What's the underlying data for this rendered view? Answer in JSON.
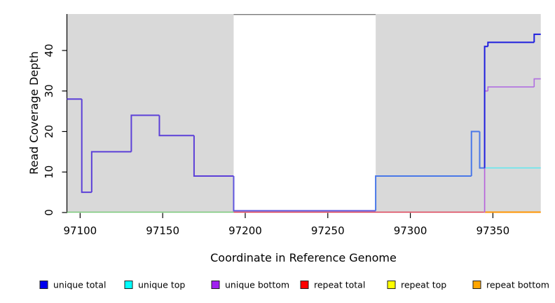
{
  "figure": {
    "background": "#ffffff"
  },
  "chart_data": {
    "type": "line",
    "subtype": "step-coverage-plot",
    "title": "",
    "xlabel": "Coordinate in Reference Genome",
    "ylabel": "Read Coverage Depth",
    "x_ticks": [
      97100,
      97150,
      97200,
      97250,
      97300,
      97350
    ],
    "y_ticks": [
      0,
      10,
      20,
      30,
      40
    ],
    "xlim": [
      97092,
      97379
    ],
    "ylim": [
      0,
      49
    ],
    "grid": false,
    "axis_color": "#000000",
    "shaded_regions": [
      {
        "name": "left-repeat-shading",
        "from": 97092,
        "to": 97193,
        "color": "#d9d9d9"
      },
      {
        "name": "right-repeat-shading",
        "from": 97279,
        "to": 97379,
        "color": "#d9d9d9"
      }
    ],
    "gap_region": {
      "from": 97193,
      "to": 97279,
      "fill": "#ffffff",
      "top_border_color": "#7a7a7a"
    },
    "series": [
      {
        "name": "baseline-overlap-green",
        "in_legend": false,
        "line_color": "#79c879",
        "width": 1.6,
        "runs": [
          {
            "x0": 97092,
            "x1": 97193,
            "y": 0,
            "dy": -0.5
          }
        ]
      },
      {
        "name": "repeat total",
        "line_color": "#dc4055",
        "width": 1.4,
        "runs": [
          {
            "x0": 97193,
            "x1": 97345,
            "y": 0,
            "dy": -0.5
          }
        ]
      },
      {
        "name": "repeat top",
        "line_color": "#ffff00",
        "width": 1.4,
        "runs": []
      },
      {
        "name": "repeat bottom",
        "line_color": "#ff9400",
        "width": 2,
        "runs": [
          {
            "x0": 97345,
            "x1": 97379,
            "y": 0,
            "dy": -0.5
          }
        ]
      },
      {
        "name": "unique top",
        "line_color": "#66e8ee",
        "width": 1.6,
        "start_y": 0,
        "runs": [
          {
            "x0": 97345,
            "x1": 97379,
            "y": 11
          }
        ]
      },
      {
        "name": "unique bottom",
        "line_color": "#b06fe0",
        "width": 1.6,
        "start_y": 0,
        "runs": [
          {
            "x0": 97345,
            "x1": 97347,
            "y": 30,
            "color": "#c05fd8"
          },
          {
            "x0": 97347,
            "x1": 97375,
            "y": 31
          },
          {
            "x0": 97375,
            "x1": 97379,
            "y": 33
          }
        ]
      },
      {
        "name": "unique total",
        "line_color": "#5c40d8",
        "width": 2,
        "runs": [
          {
            "x0": 97092,
            "x1": 97101,
            "y": 28
          },
          {
            "x0": 97101,
            "x1": 97107,
            "y": 5
          },
          {
            "x0": 97107,
            "x1": 97131,
            "y": 15
          },
          {
            "x0": 97131,
            "x1": 97148,
            "y": 24
          },
          {
            "x0": 97148,
            "x1": 97169,
            "y": 19
          },
          {
            "x0": 97169,
            "x1": 97193,
            "y": 9
          },
          {
            "x0": 97193,
            "x1": 97279,
            "y": 0,
            "dy": -2.5,
            "color": "#5f55dd"
          },
          {
            "x0": 97279,
            "x1": 97337,
            "y": 9,
            "color": "#4a78e8"
          },
          {
            "x0": 97337,
            "x1": 97342,
            "y": 20,
            "color": "#4a78e8"
          },
          {
            "x0": 97342,
            "x1": 97345,
            "y": 11,
            "color": "#4a78e8"
          },
          {
            "x0": 97345,
            "x1": 97347,
            "y": 41,
            "color": "#1e1ede"
          },
          {
            "x0": 97347,
            "x1": 97375,
            "y": 42,
            "color": "#1e1ede"
          },
          {
            "x0": 97375,
            "x1": 97379,
            "y": 44,
            "color": "#1e1ede"
          }
        ]
      }
    ],
    "legend": {
      "position": "bottom",
      "marker_border": "#222222",
      "items": [
        {
          "label": "unique total",
          "color": "#0000ee"
        },
        {
          "label": "unique top",
          "color": "#00ffff"
        },
        {
          "label": "unique bottom",
          "color": "#a020f0"
        },
        {
          "label": "repeat total",
          "color": "#ff0000"
        },
        {
          "label": "repeat top",
          "color": "#ffff00"
        },
        {
          "label": "repeat bottom",
          "color": "#ffa500"
        }
      ]
    }
  }
}
